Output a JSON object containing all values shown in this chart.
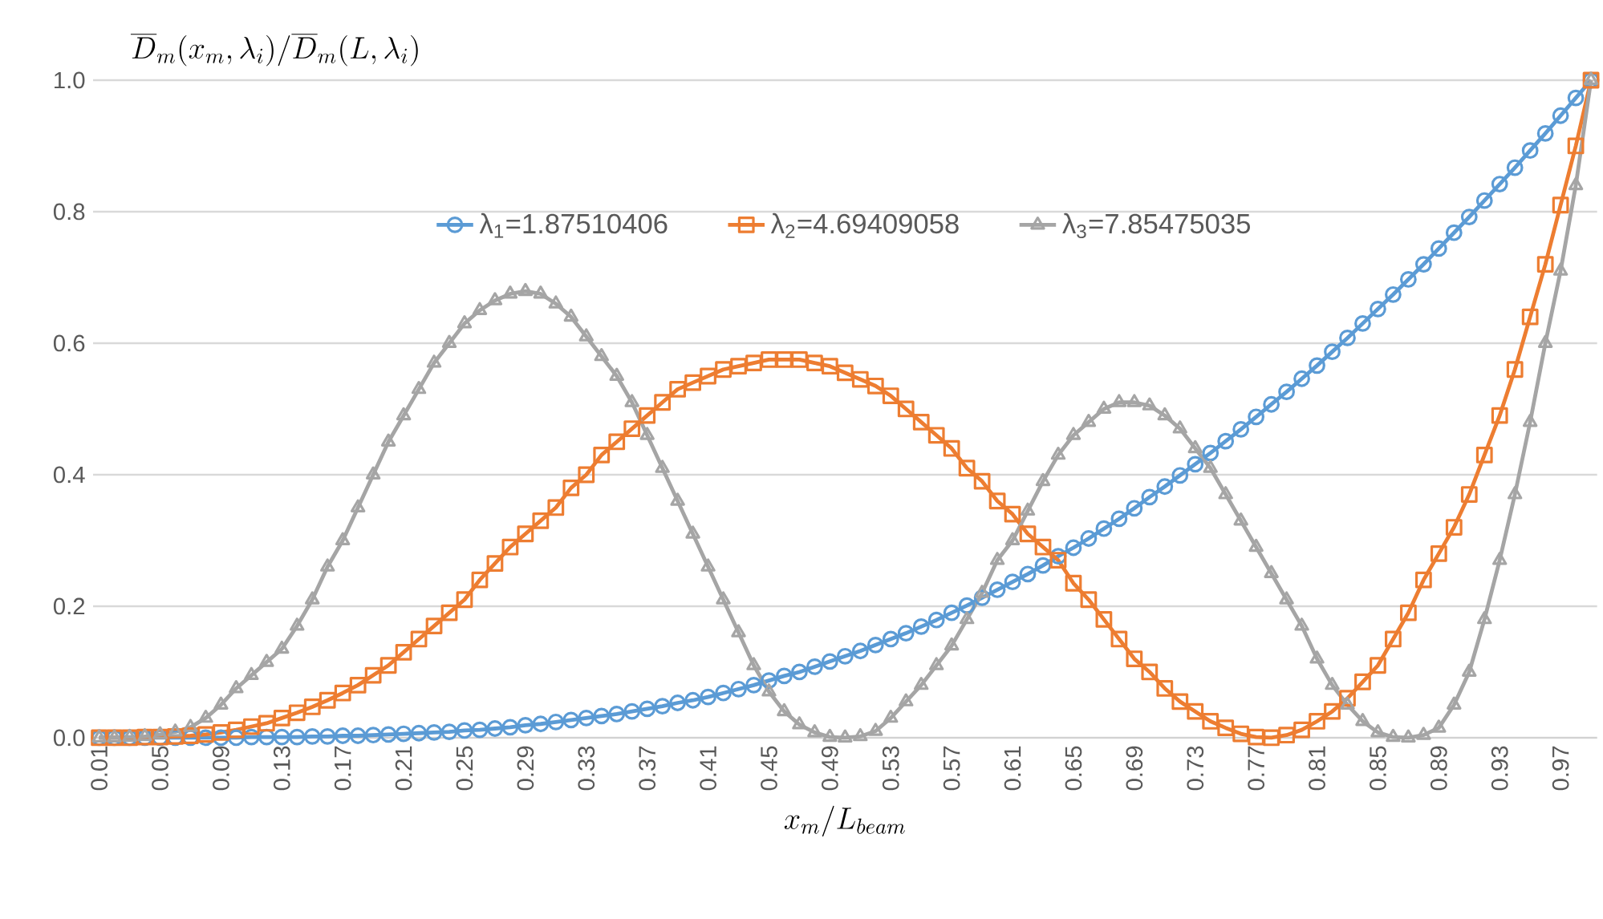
{
  "chart_data": {
    "type": "line",
    "ylabel": "\\overline{D}_m(x_m,\\lambda_i)/\\overline{D}_m(L,\\lambda_i)",
    "xlabel": "x_m/L_{beam}",
    "categories": [
      "0.01",
      null,
      null,
      null,
      "0.05",
      null,
      null,
      null,
      "0.09",
      null,
      null,
      null,
      "0.13",
      null,
      null,
      null,
      "0.17",
      null,
      null,
      null,
      "0.21",
      null,
      null,
      null,
      "0.25",
      null,
      null,
      null,
      "0.29",
      null,
      null,
      null,
      "0.33",
      null,
      null,
      null,
      "0.37",
      null,
      null,
      null,
      "0.41",
      null,
      null,
      null,
      "0.45",
      null,
      null,
      null,
      "0.49",
      null,
      null,
      null,
      "0.53",
      null,
      null,
      null,
      "0.57",
      null,
      null,
      null,
      "0.61",
      null,
      null,
      null,
      "0.65",
      null,
      null,
      null,
      "0.69",
      null,
      null,
      null,
      "0.73",
      null,
      null,
      null,
      "0.77",
      null,
      null,
      null,
      "0.81",
      null,
      null,
      null,
      "0.85",
      null,
      null,
      null,
      "0.89",
      null,
      null,
      null,
      "0.93",
      null,
      null,
      null,
      "0.97",
      null,
      null
    ],
    "series": [
      {
        "name": "λ$_{1}$=1.87510406",
        "color": "#5b9bd5",
        "marker": "circle",
        "values": [
          0,
          0,
          0,
          0,
          0,
          0,
          0,
          0,
          0,
          0,
          0.001,
          0.001,
          0.001,
          0.001,
          0.002,
          0.002,
          0.003,
          0.003,
          0.004,
          0.005,
          0.006,
          0.007,
          0.008,
          0.009,
          0.011,
          0.012,
          0.014,
          0.016,
          0.019,
          0.021,
          0.024,
          0.027,
          0.03,
          0.033,
          0.036,
          0.04,
          0.044,
          0.048,
          0.053,
          0.057,
          0.062,
          0.068,
          0.074,
          0.08,
          0.087,
          0.094,
          0.1,
          0.108,
          0.116,
          0.124,
          0.132,
          0.141,
          0.15,
          0.159,
          0.169,
          0.179,
          0.19,
          0.201,
          0.213,
          0.225,
          0.237,
          0.249,
          0.262,
          0.276,
          0.289,
          0.303,
          0.318,
          0.333,
          0.349,
          0.366,
          0.382,
          0.399,
          0.416,
          0.433,
          0.451,
          0.469,
          0.488,
          0.507,
          0.526,
          0.546,
          0.566,
          0.587,
          0.608,
          0.63,
          0.652,
          0.674,
          0.697,
          0.72,
          0.744,
          0.768,
          0.792,
          0.817,
          0.842,
          0.867,
          0.893,
          0.919,
          0.946,
          0.973,
          1.0
        ]
      },
      {
        "name": "λ$_{2}$=4.69409058",
        "color": "#ed7d31",
        "marker": "square",
        "values": [
          0,
          0,
          0,
          0.001,
          0.001,
          0.002,
          0.003,
          0.005,
          0.008,
          0.012,
          0.017,
          0.022,
          0.03,
          0.038,
          0.047,
          0.057,
          0.068,
          0.08,
          0.095,
          0.11,
          0.13,
          0.15,
          0.17,
          0.19,
          0.21,
          0.24,
          0.265,
          0.29,
          0.31,
          0.33,
          0.35,
          0.38,
          0.4,
          0.43,
          0.45,
          0.47,
          0.49,
          0.51,
          0.53,
          0.54,
          0.55,
          0.56,
          0.565,
          0.57,
          0.575,
          0.575,
          0.575,
          0.57,
          0.565,
          0.555,
          0.545,
          0.535,
          0.52,
          0.5,
          0.48,
          0.46,
          0.44,
          0.41,
          0.39,
          0.36,
          0.34,
          0.31,
          0.29,
          0.27,
          0.235,
          0.21,
          0.18,
          0.15,
          0.12,
          0.1,
          0.075,
          0.055,
          0.04,
          0.025,
          0.015,
          0.006,
          0.001,
          0,
          0.004,
          0.012,
          0.025,
          0.04,
          0.06,
          0.085,
          0.11,
          0.15,
          0.19,
          0.24,
          0.28,
          0.32,
          0.37,
          0.43,
          0.49,
          0.56,
          0.64,
          0.72,
          0.81,
          0.9,
          1.0
        ]
      },
      {
        "name": "λ$_{3}$=7.85475035",
        "color": "#a5a5a5",
        "marker": "triangle",
        "values": [
          0,
          0,
          0.001,
          0.002,
          0.005,
          0.009,
          0.016,
          0.03,
          0.05,
          0.075,
          0.095,
          0.115,
          0.135,
          0.17,
          0.21,
          0.26,
          0.3,
          0.35,
          0.4,
          0.45,
          0.49,
          0.53,
          0.57,
          0.6,
          0.63,
          0.65,
          0.665,
          0.675,
          0.679,
          0.675,
          0.66,
          0.64,
          0.61,
          0.58,
          0.55,
          0.51,
          0.46,
          0.41,
          0.36,
          0.31,
          0.26,
          0.21,
          0.16,
          0.11,
          0.07,
          0.04,
          0.02,
          0.008,
          0.001,
          0,
          0.002,
          0.01,
          0.03,
          0.055,
          0.08,
          0.11,
          0.14,
          0.18,
          0.22,
          0.27,
          0.3,
          0.345,
          0.39,
          0.43,
          0.46,
          0.48,
          0.5,
          0.51,
          0.51,
          0.505,
          0.49,
          0.47,
          0.44,
          0.41,
          0.37,
          0.33,
          0.29,
          0.25,
          0.21,
          0.17,
          0.12,
          0.08,
          0.05,
          0.025,
          0.008,
          0.001,
          0,
          0.004,
          0.015,
          0.05,
          0.1,
          0.18,
          0.27,
          0.37,
          0.48,
          0.6,
          0.71,
          0.84,
          1.0
        ]
      }
    ],
    "ylim": [
      0,
      1.0
    ],
    "yticks": [
      {
        "value": 0,
        "label": "0.0"
      },
      {
        "value": 0.2,
        "label": "0.2"
      },
      {
        "value": 0.4,
        "label": "0.4"
      },
      {
        "value": 0.6,
        "label": "0.6"
      },
      {
        "value": 0.8,
        "label": "0.8"
      },
      {
        "value": 1.0,
        "label": "1.0"
      }
    ],
    "grid": "y",
    "legend": "top"
  }
}
